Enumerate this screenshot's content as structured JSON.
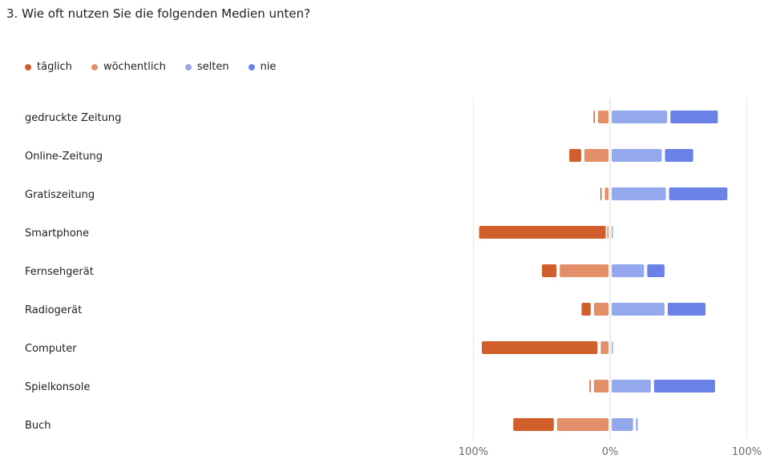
{
  "question": {
    "title": "3. Wie oft nutzen Sie die folgenden Medien unten?"
  },
  "legend": [
    {
      "label": "täglich",
      "color": "#d05f2b"
    },
    {
      "label": "wöchentlich",
      "color": "#e28f6a"
    },
    {
      "label": "selten",
      "color": "#94a8ee"
    },
    {
      "label": "nie",
      "color": "#6a82e8"
    }
  ],
  "chart_data": {
    "type": "bar",
    "orientation": "horizontal-diverging",
    "categories": [
      "gedruckte Zeitung",
      "Online-Zeitung",
      "Gratiszeitung",
      "Smartphone",
      "Fernsehgerät",
      "Radiogerät",
      "Computer",
      "Spielkonsole",
      "Buch"
    ],
    "series": [
      {
        "name": "täglich",
        "color": "#d05f2b",
        "side": "left",
        "values": [
          2,
          11,
          1,
          95,
          13,
          9,
          87,
          2,
          32
        ]
      },
      {
        "name": "wöchentlich",
        "color": "#e28f6a",
        "side": "left",
        "values": [
          10,
          20,
          5,
          2,
          38,
          13,
          8,
          13,
          40
        ]
      },
      {
        "name": "selten",
        "color": "#94a8ee",
        "side": "right",
        "values": [
          43,
          39,
          42,
          1,
          26,
          41,
          1,
          31,
          18
        ]
      },
      {
        "name": "nie",
        "color": "#6a82e8",
        "side": "right",
        "values": [
          37,
          23,
          45,
          0,
          15,
          30,
          0,
          47,
          2
        ]
      }
    ],
    "xlim": [
      -100,
      100
    ],
    "ticks": [
      {
        "value": -100,
        "label": "100%"
      },
      {
        "value": 0,
        "label": "0%"
      },
      {
        "value": 100,
        "label": "100%"
      }
    ],
    "grid": true,
    "legend_position": "top-left"
  }
}
